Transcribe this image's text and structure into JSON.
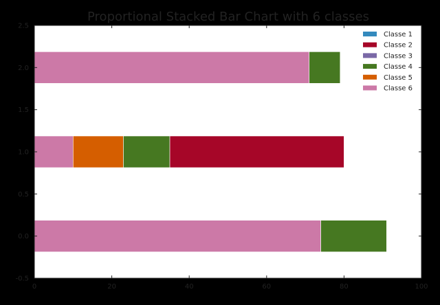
{
  "chart_data": {
    "type": "bar",
    "orientation": "horizontal",
    "stacked": true,
    "title": "Proportional Stacked Bar Chart with 6 classes",
    "xlabel": "",
    "ylabel": "",
    "xlim": [
      0,
      100
    ],
    "ylim": [
      -0.5,
      2.5
    ],
    "xticks": [
      "0",
      "20",
      "40",
      "60",
      "80",
      "100"
    ],
    "yticks": [
      "-0.5",
      "0.0",
      "0.5",
      "1.0",
      "1.5",
      "2.0",
      "2.5"
    ],
    "categories": [
      0,
      1,
      2
    ],
    "bar_height": 0.375,
    "grid": false,
    "legend_position": "top-right",
    "stack_order": [
      "Classe 6",
      "Classe 5",
      "Classe 4",
      "Classe 3",
      "Classe 2",
      "Classe 1"
    ],
    "series": [
      {
        "name": "Classe 1",
        "color": "#348ABD",
        "values": [
          0,
          0,
          0
        ]
      },
      {
        "name": "Classe 2",
        "color": "#A60628",
        "values": [
          0,
          45,
          0
        ]
      },
      {
        "name": "Classe 3",
        "color": "#7A68A6",
        "values": [
          0,
          0,
          0
        ]
      },
      {
        "name": "Classe 4",
        "color": "#467821",
        "values": [
          17,
          12,
          8
        ]
      },
      {
        "name": "Classe 5",
        "color": "#D55E00",
        "values": [
          0,
          13,
          0
        ]
      },
      {
        "name": "Classe 6",
        "color": "#CC79A7",
        "values": [
          74,
          10,
          71
        ]
      }
    ],
    "colors": {
      "background": "#000000",
      "plot_area": "#FFFFFF",
      "text": "#222222"
    }
  }
}
